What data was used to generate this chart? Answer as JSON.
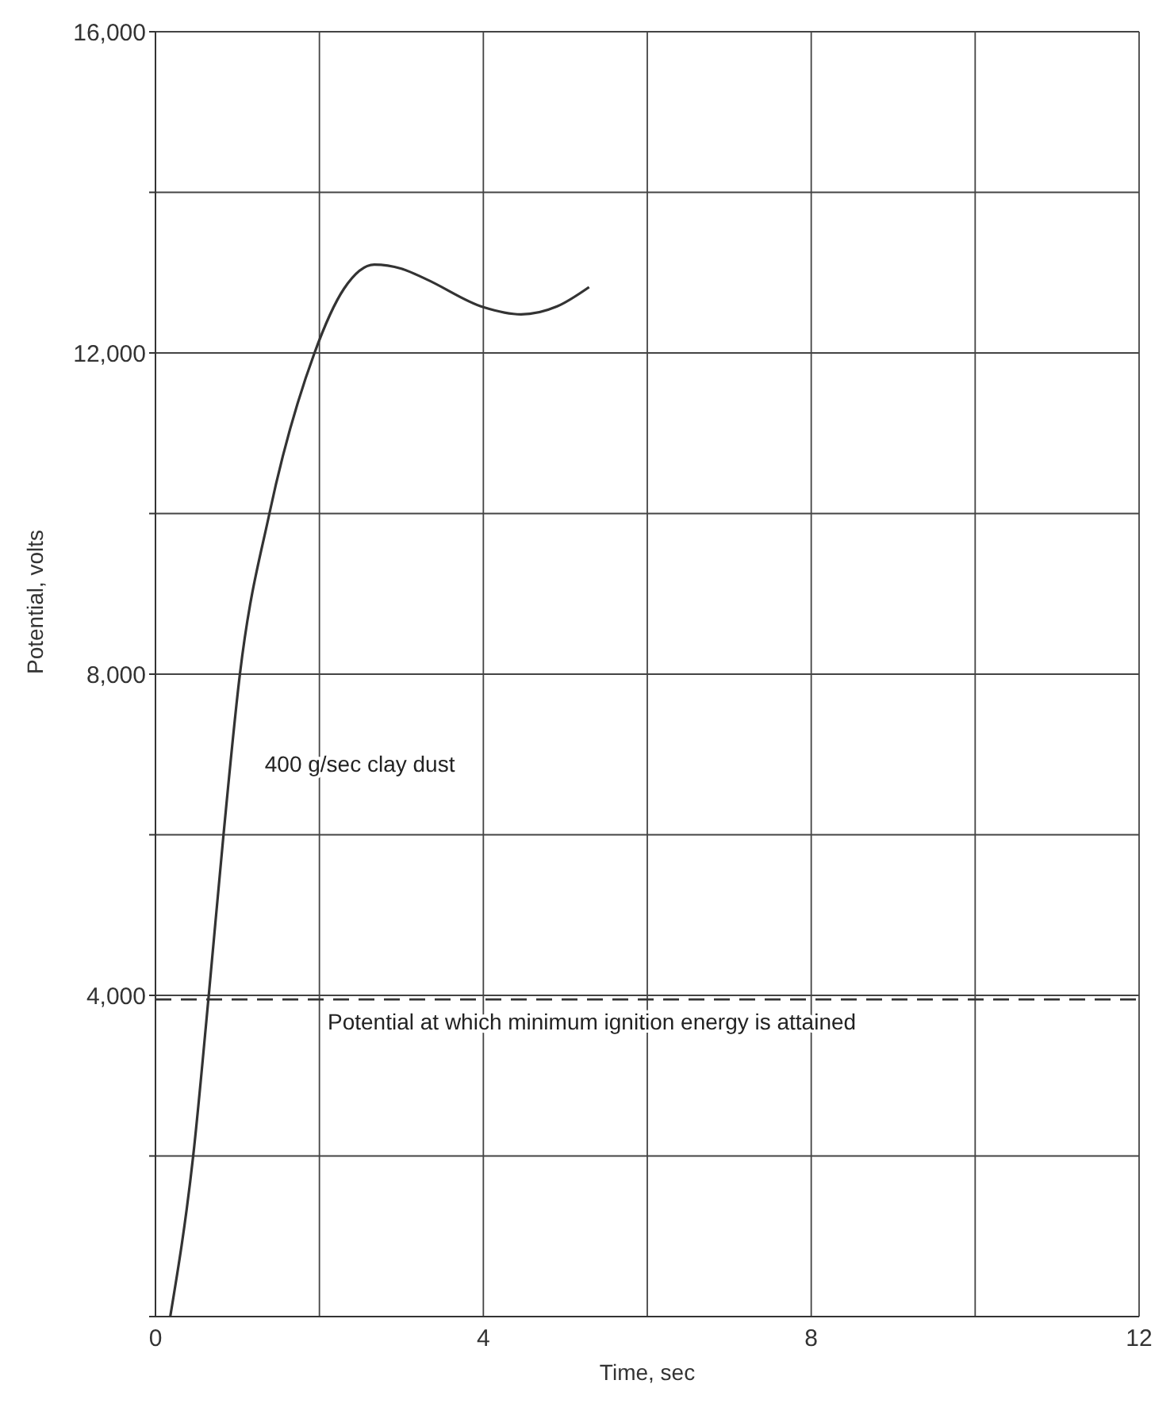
{
  "chart_data": {
    "type": "line",
    "xlabel": "Time,  sec",
    "ylabel": "Potential, volts",
    "xlim": [
      0,
      12
    ],
    "ylim": [
      0,
      16000
    ],
    "xticks": [
      0,
      {
        "value": 2,
        "label": null
      },
      4,
      {
        "value": 6,
        "label": null
      },
      8,
      {
        "value": 10,
        "label": null
      },
      12
    ],
    "yticks": [
      {
        "value": 0,
        "label": null
      },
      {
        "value": 2000,
        "label": null
      },
      {
        "value": 4000,
        "label": "4,000"
      },
      {
        "value": 6000,
        "label": null
      },
      {
        "value": 8000,
        "label": "8,000"
      },
      {
        "value": 10000,
        "label": null
      },
      {
        "value": 12000,
        "label": "12,000"
      },
      {
        "value": 14000,
        "label": null
      },
      {
        "value": 16000,
        "label": "16,000"
      }
    ],
    "grid": true,
    "legend": false,
    "marker": "none",
    "line_style": "solid",
    "series": [
      {
        "name": "400 g/sec clay dust",
        "color": "#333333",
        "x": [
          0.18,
          0.46,
          0.65,
          0.83,
          1.03,
          1.39,
          1.94,
          2.3,
          2.67,
          3.0,
          3.3,
          4.0,
          4.46,
          4.9,
          5.29
        ],
        "values": [
          0,
          2000,
          4000,
          6000,
          8000,
          10000,
          12000,
          12800,
          13100,
          13050,
          12920,
          12570,
          12480,
          12580,
          12820
        ]
      }
    ],
    "ref_lines": [
      {
        "axis": "y",
        "value": 3950,
        "label": "Potential at which minimum ignition energy is attained",
        "line_style": "dashed",
        "color": "#333333"
      }
    ]
  }
}
